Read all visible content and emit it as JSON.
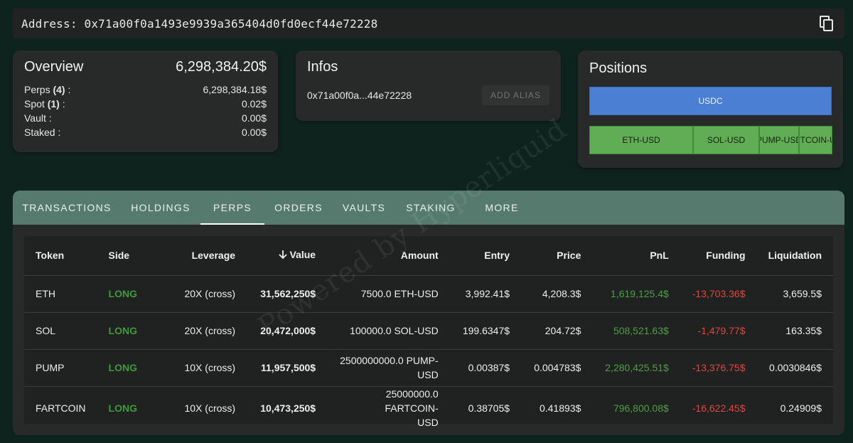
{
  "address_bar": {
    "label": "Address: 0x71a00f0a1493e9939a365404d0fd0ecf44e72228",
    "copy_icon": "copy-icon"
  },
  "overview": {
    "title": "Overview",
    "total": "6,298,384.20$",
    "rows": [
      {
        "label": "Perps",
        "count": "(4)",
        "suffix": " :",
        "value": "6,298,384.18$"
      },
      {
        "label": "Spot",
        "count": "(1)",
        "suffix": " :",
        "value": "0.02$"
      },
      {
        "label": "Vault",
        "count": "",
        "suffix": " :",
        "value": "0.00$"
      },
      {
        "label": "Staked",
        "count": "",
        "suffix": " :",
        "value": "0.00$"
      }
    ]
  },
  "infos": {
    "title": "Infos",
    "short_address": "0x71a00f0a...44e72228",
    "add_alias_label": "ADD ALIAS"
  },
  "positions": {
    "title": "Positions",
    "usdc_label": "USDC",
    "segments": [
      {
        "label": "ETH-USD"
      },
      {
        "label": "SOL-USD"
      },
      {
        "label": "PUMP-USD"
      },
      {
        "label": "FARTCOIN-USD"
      }
    ]
  },
  "tabs": [
    {
      "label": "TRANSACTIONS"
    },
    {
      "label": "HOLDINGS"
    },
    {
      "label": "PERPS"
    },
    {
      "label": "ORDERS"
    },
    {
      "label": "VAULTS"
    },
    {
      "label": "STAKING"
    },
    {
      "label": "MORE"
    }
  ],
  "active_tab": "PERPS",
  "table": {
    "headers": {
      "token": "Token",
      "side": "Side",
      "leverage": "Leverage",
      "value": "Value",
      "amount": "Amount",
      "entry": "Entry",
      "price": "Price",
      "pnl": "PnL",
      "funding": "Funding",
      "liquidation": "Liquidation"
    },
    "rows": [
      {
        "token": "ETH",
        "side": "LONG",
        "leverage": "20X (cross)",
        "value": "31,562,250$",
        "amount_1": "7500.0 ETH-USD",
        "amount_2": "",
        "entry": "3,992.41$",
        "price": "4,208.3$",
        "pnl": "1,619,125.4$",
        "funding": "-13,703.36$",
        "liquidation": "3,659.5$"
      },
      {
        "token": "SOL",
        "side": "LONG",
        "leverage": "20X (cross)",
        "value": "20,472,000$",
        "amount_1": "100000.0 SOL-USD",
        "amount_2": "",
        "entry": "199.6347$",
        "price": "204.72$",
        "pnl": "508,521.63$",
        "funding": "-1,479.77$",
        "liquidation": "163.35$"
      },
      {
        "token": "PUMP",
        "side": "LONG",
        "leverage": "10X (cross)",
        "value": "11,957,500$",
        "amount_1": "2500000000.0 PUMP-",
        "amount_2": "USD",
        "entry": "0.00387$",
        "price": "0.004783$",
        "pnl": "2,280,425.51$",
        "funding": "-13,376.75$",
        "liquidation": "0.0030846$"
      },
      {
        "token": "FARTCOIN",
        "side": "LONG",
        "leverage": "10X (cross)",
        "value": "10,473,250$",
        "amount_1": "25000000.0 FARTCOIN-",
        "amount_2": "USD",
        "entry": "0.38705$",
        "price": "0.41893$",
        "pnl": "796,800.08$",
        "funding": "-16,622.45$",
        "liquidation": "0.24909$"
      }
    ]
  },
  "watermark": "Powered by Hyperliquid",
  "colors": {
    "background": "#0f231e",
    "tab_bar": "#567a6e",
    "usdc": "#4a7fd4",
    "position_green": "#61ad56",
    "long": "#3f9b3a",
    "negative": "#e0463e"
  }
}
